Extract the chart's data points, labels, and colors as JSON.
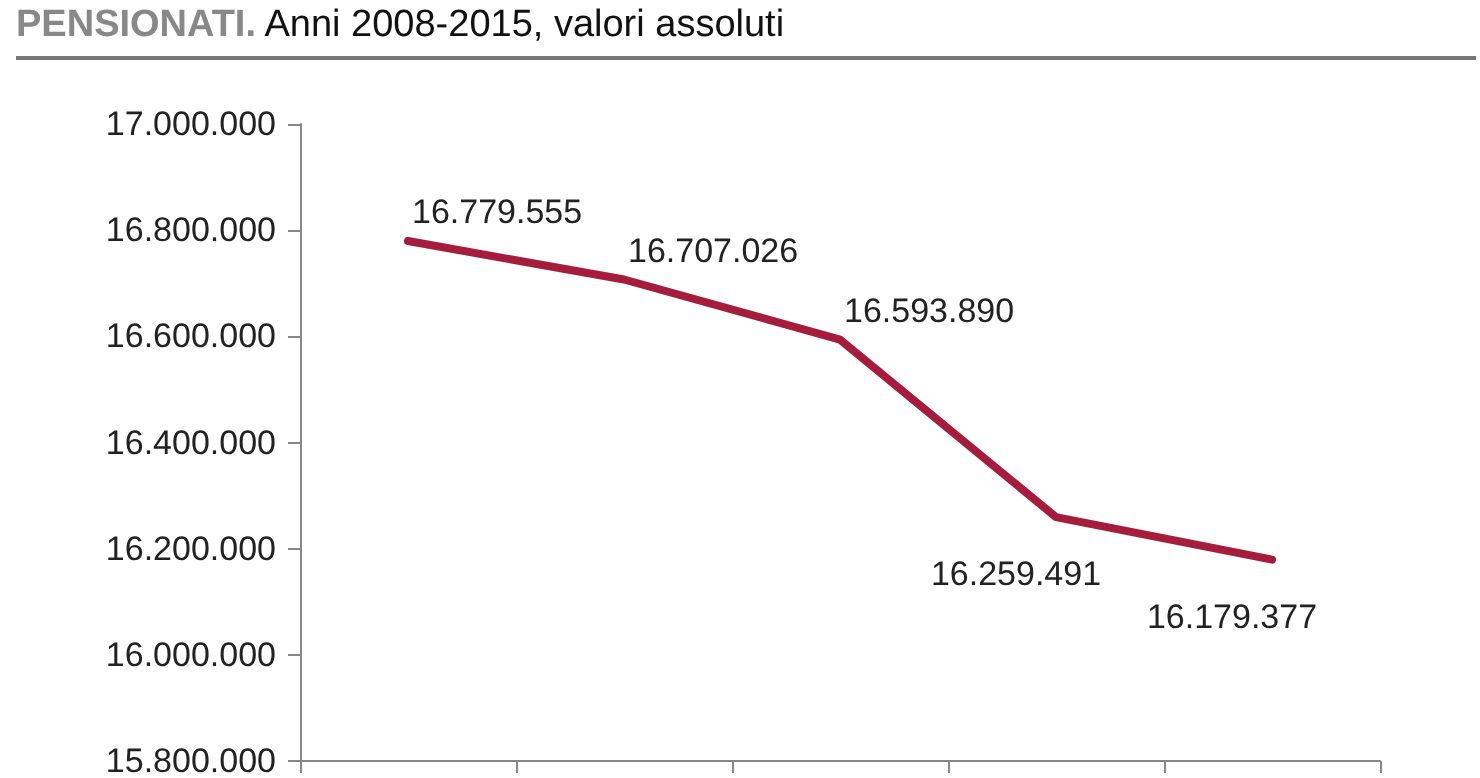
{
  "chart_data": {
    "type": "line",
    "title": "PENSIONATI. Anni 2008-2015, valori assoluti",
    "categories": [
      null,
      null,
      null,
      null,
      null
    ],
    "series": [
      {
        "color": "#a51c3c",
        "values": [
          16779555,
          16707026,
          16593890,
          16259491,
          16179377
        ],
        "value_labels": [
          "16.779.555",
          "16.707.026",
          "16.593.890",
          "16.259.491",
          "16.179.377"
        ]
      }
    ],
    "ylim": [
      15800000,
      17000000
    ],
    "yticks": [
      {
        "value": 15800000,
        "label": "15.800.000"
      },
      {
        "value": 16000000,
        "label": "16.000.000"
      },
      {
        "value": 16200000,
        "label": "16.200.000"
      },
      {
        "value": 16400000,
        "label": "16.400.000"
      },
      {
        "value": 16600000,
        "label": "16.600.000"
      },
      {
        "value": 16800000,
        "label": "16.800.000"
      },
      {
        "value": 17000000,
        "label": "17.000.000"
      }
    ],
    "tick_labels": "y",
    "grid": false,
    "marker": "none",
    "line_style": "solid"
  }
}
